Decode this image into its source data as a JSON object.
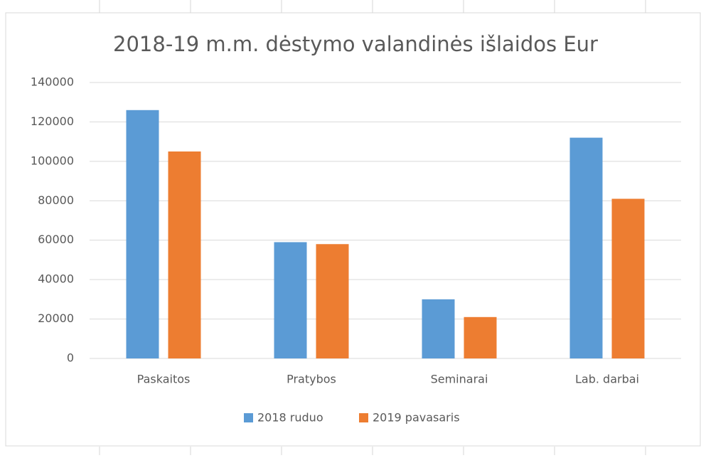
{
  "chart_data": {
    "type": "bar",
    "title": "2018-19 m.m. dėstymo valandinės išlaidos Eur",
    "categories": [
      "Paskaitos",
      "Pratybos",
      "Seminarai",
      "Lab. darbai"
    ],
    "series": [
      {
        "name": "2018 ruduo",
        "color": "#5b9bd5",
        "values": [
          126000,
          59000,
          30000,
          112000
        ]
      },
      {
        "name": "2019 pavasaris",
        "color": "#ed7d31",
        "values": [
          105000,
          58000,
          21000,
          81000
        ]
      }
    ],
    "ylim": [
      0,
      140000
    ],
    "yticks": [
      0,
      20000,
      40000,
      60000,
      80000,
      100000,
      120000,
      140000
    ],
    "grid": true,
    "legend": "bottom"
  }
}
